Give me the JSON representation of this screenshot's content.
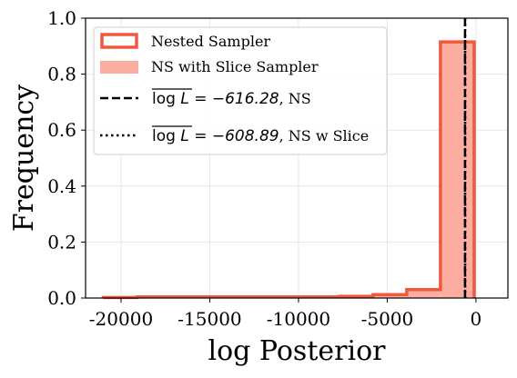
{
  "chart_data": {
    "type": "histogram",
    "xlabel": "log Posterior",
    "ylabel": "Frequency",
    "xlim": [
      -22000,
      1800
    ],
    "ylim": [
      0.0,
      1.0
    ],
    "grid": true,
    "legend_position": "top-left",
    "x_ticks": [
      -20000,
      -15000,
      -10000,
      -5000,
      0
    ],
    "x_tick_labels": [
      "-20000",
      "-15000",
      "-10000",
      "-5000",
      "0"
    ],
    "y_ticks": [
      0.0,
      0.2,
      0.4,
      0.6,
      0.8,
      1.0
    ],
    "y_tick_labels": [
      "0.0",
      "0.2",
      "0.4",
      "0.6",
      "0.8",
      "1.0"
    ],
    "bin_edges": [
      -21000,
      -19100,
      -17200,
      -15300,
      -13400,
      -11500,
      -9600,
      -7700,
      -5800,
      -3900,
      -2000,
      -100
    ],
    "series": [
      {
        "name": "Nested Sampler",
        "style": "step",
        "color": "#f0583f",
        "values": [
          0.002,
          0.004,
          0.004,
          0.004,
          0.004,
          0.004,
          0.004,
          0.006,
          0.012,
          0.03,
          0.915
        ]
      },
      {
        "name": "NS with Slice Sampler",
        "style": "filled",
        "color": "#fbada0",
        "values": [
          0.001,
          0.003,
          0.003,
          0.003,
          0.003,
          0.003,
          0.003,
          0.005,
          0.01,
          0.028,
          0.915
        ]
      }
    ],
    "vlines": [
      {
        "x": -616.28,
        "style": "dashed",
        "color": "#000000",
        "label": "$\\overline{\\log L} = -616.28$, NS"
      },
      {
        "x": -608.89,
        "style": "dotted",
        "color": "#000000",
        "label": "$\\overline{\\log L} = -608.89$, NS w Slice"
      }
    ]
  },
  "legend": {
    "items": [
      {
        "kind": "step",
        "text": "Nested Sampler"
      },
      {
        "kind": "fill",
        "text": "NS with Slice Sampler"
      },
      {
        "kind": "dashed",
        "math_prefix": "log",
        "math_suffix": "L = −616.28",
        "text": ", NS"
      },
      {
        "kind": "dotted",
        "math_prefix": "log",
        "math_suffix": "L = −608.89",
        "text": ", NS w Slice"
      }
    ]
  },
  "colors": {
    "step_edge": "#f0583f",
    "fill": "#fbada0",
    "grid": "#e6e6e6",
    "axes": "#000000"
  }
}
